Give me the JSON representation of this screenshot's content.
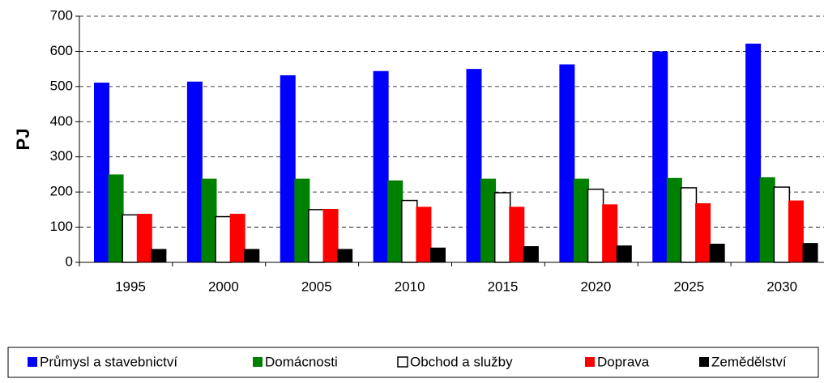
{
  "chart_data": {
    "type": "bar",
    "y_label": "PJ",
    "categories": [
      "1995",
      "2000",
      "2005",
      "2010",
      "2015",
      "2020",
      "2025",
      "2030"
    ],
    "series": [
      {
        "name": "Průmysl a stavebnictví",
        "color": "#0000ff",
        "values": [
          511,
          514,
          532,
          544,
          550,
          563,
          600,
          622
        ]
      },
      {
        "name": "Domácnosti",
        "color": "#008000",
        "values": [
          250,
          238,
          238,
          233,
          238,
          238,
          240,
          242
        ]
      },
      {
        "name": "Obchod a služby",
        "color": "#ffffff",
        "values": [
          135,
          130,
          150,
          176,
          198,
          208,
          212,
          214
        ]
      },
      {
        "name": "Doprava",
        "color": "#ff0000",
        "values": [
          138,
          138,
          152,
          158,
          158,
          165,
          168,
          176
        ]
      },
      {
        "name": "Zemědělství",
        "color": "#000000",
        "values": [
          38,
          38,
          38,
          42,
          46,
          48,
          53,
          55
        ]
      }
    ],
    "ylim": [
      0,
      700
    ],
    "yticks": [
      0,
      100,
      200,
      300,
      400,
      500,
      600,
      700
    ],
    "grid": true,
    "legend": "bottom"
  }
}
